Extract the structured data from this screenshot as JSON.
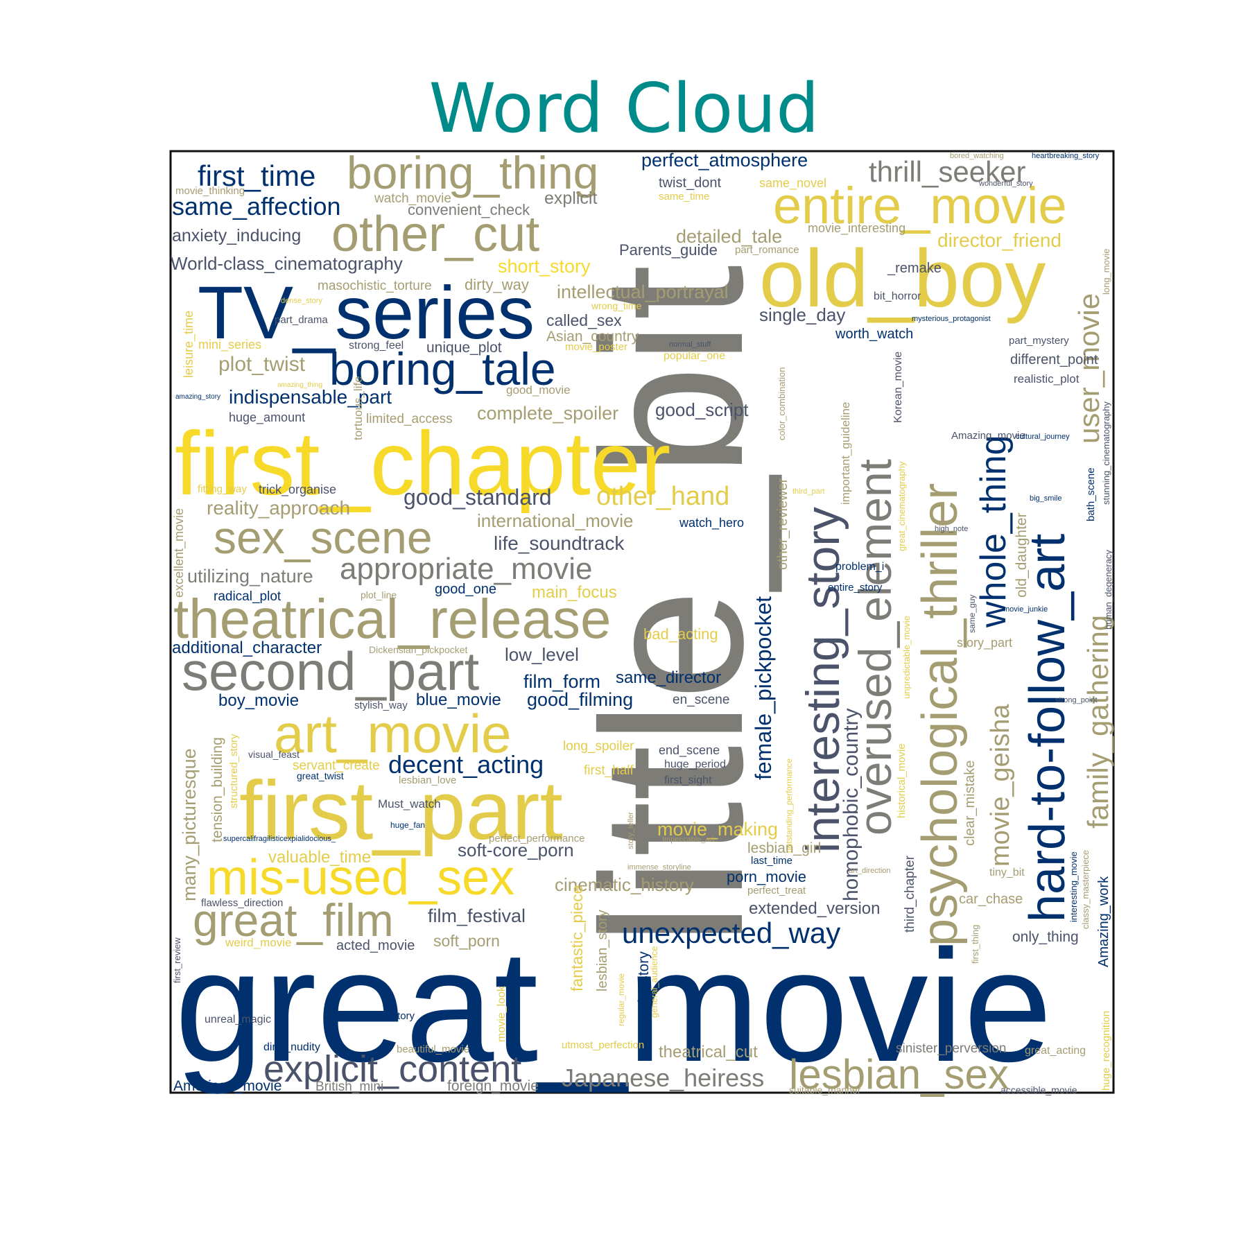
{
  "title": "Word Cloud",
  "title_color": "#008b8b",
  "colors": {
    "navy": "#00306e",
    "slate": "#4b536b",
    "gray": "#7d7c77",
    "olive": "#a59d72",
    "gold": "#e3cc4a",
    "yellow": "#f7d92a",
    "frame": "#111111"
  },
  "chart_data": {
    "type": "wordcloud",
    "words": [
      {
        "text": "great_movie",
        "color": "navy"
      },
      {
        "text": "little_bit",
        "color": "gray"
      },
      {
        "text": "first_chapter",
        "color": "yellow"
      },
      {
        "text": "first_part",
        "color": "gold"
      },
      {
        "text": "old_boy",
        "color": "gold"
      },
      {
        "text": "TV_series",
        "color": "navy"
      },
      {
        "text": "theatrical_release",
        "color": "olive"
      },
      {
        "text": "psychological_thriller",
        "color": "olive"
      },
      {
        "text": "hard-to-follow_art",
        "color": "navy"
      },
      {
        "text": "second_part",
        "color": "gray"
      },
      {
        "text": "art_movie",
        "color": "gold"
      },
      {
        "text": "mis-used_sex",
        "color": "yellow"
      },
      {
        "text": "entire_movie",
        "color": "gold"
      },
      {
        "text": "boring_thing",
        "color": "olive"
      },
      {
        "text": "other_cut",
        "color": "olive"
      },
      {
        "text": "boring_tale",
        "color": "navy"
      },
      {
        "text": "sex_scene",
        "color": "olive"
      },
      {
        "text": "great_film",
        "color": "olive"
      },
      {
        "text": "interesting_story",
        "color": "slate"
      },
      {
        "text": "overused_element",
        "color": "gray"
      },
      {
        "text": "lesbian_sex",
        "color": "olive"
      },
      {
        "text": "explicit_content",
        "color": "slate"
      },
      {
        "text": "whole_thing",
        "color": "navy"
      },
      {
        "text": "user_movie",
        "color": "olive"
      },
      {
        "text": "family_gathering",
        "color": "olive"
      },
      {
        "text": "appropriate_movie",
        "color": "gray"
      },
      {
        "text": "unexpected_way",
        "color": "navy"
      },
      {
        "text": "thrill_seeker",
        "color": "gray"
      },
      {
        "text": "first_time",
        "color": "navy"
      },
      {
        "text": "same_affection",
        "color": "navy"
      },
      {
        "text": "Japanese_heiress",
        "color": "gray"
      },
      {
        "text": "movie_geisha",
        "color": "olive"
      },
      {
        "text": "female_pickpocket",
        "color": "navy"
      },
      {
        "text": "homophobic_country",
        "color": "slate"
      },
      {
        "text": "decent_acting",
        "color": "navy"
      },
      {
        "text": "plot_twist",
        "color": "olive"
      },
      {
        "text": "indispensable_part",
        "color": "navy"
      },
      {
        "text": "good_standard",
        "color": "slate"
      },
      {
        "text": "other_hand",
        "color": "gold"
      },
      {
        "text": "reality_approach",
        "color": "olive"
      },
      {
        "text": "international_movie",
        "color": "olive"
      },
      {
        "text": "life_soundtrack",
        "color": "slate"
      },
      {
        "text": "utilizing_nature",
        "color": "gray"
      },
      {
        "text": "complete_spoiler",
        "color": "olive"
      },
      {
        "text": "good_script",
        "color": "slate"
      },
      {
        "text": "intellectual_portrayal",
        "color": "olive"
      },
      {
        "text": "single_day",
        "color": "slate"
      },
      {
        "text": "perfect_atmosphere",
        "color": "navy"
      },
      {
        "text": "director_friend",
        "color": "gold"
      },
      {
        "text": "detailed_tale",
        "color": "olive"
      },
      {
        "text": "short_story",
        "color": "yellow"
      },
      {
        "text": "Parents_guide",
        "color": "slate"
      },
      {
        "text": "anxiety_inducing",
        "color": "slate"
      },
      {
        "text": "World-class_cinematography",
        "color": "slate"
      },
      {
        "text": "explicit",
        "color": "gray"
      },
      {
        "text": "convenient_check",
        "color": "gray"
      },
      {
        "text": "masochistic_torture",
        "color": "olive"
      },
      {
        "text": "dirty_way",
        "color": "olive"
      },
      {
        "text": "called_sex",
        "color": "slate"
      },
      {
        "text": "Asian_country",
        "color": "olive"
      },
      {
        "text": "unique_plot",
        "color": "slate"
      },
      {
        "text": "additional_character",
        "color": "navy"
      },
      {
        "text": "low_level",
        "color": "slate"
      },
      {
        "text": "film_form",
        "color": "navy"
      },
      {
        "text": "same_director",
        "color": "navy"
      },
      {
        "text": "boy_movie",
        "color": "navy"
      },
      {
        "text": "blue_movie",
        "color": "navy"
      },
      {
        "text": "good_filming",
        "color": "navy"
      },
      {
        "text": "en_scene",
        "color": "slate"
      },
      {
        "text": "radical_plot",
        "color": "navy"
      },
      {
        "text": "main_focus",
        "color": "gold"
      },
      {
        "text": "bad_acting",
        "color": "gold"
      },
      {
        "text": "good_one",
        "color": "navy"
      },
      {
        "text": "soft-core_porn",
        "color": "slate"
      },
      {
        "text": "valuable_time",
        "color": "gold"
      },
      {
        "text": "film_festival",
        "color": "slate"
      },
      {
        "text": "cinematic_history",
        "color": "olive"
      },
      {
        "text": "movie_making",
        "color": "gold"
      },
      {
        "text": "extended_version",
        "color": "slate"
      },
      {
        "text": "porn_movie",
        "color": "navy"
      },
      {
        "text": "lesbian_girl",
        "color": "olive"
      },
      {
        "text": "soft_porn",
        "color": "olive"
      },
      {
        "text": "acted_movie",
        "color": "slate"
      },
      {
        "text": "theatrical_cut",
        "color": "olive"
      },
      {
        "text": "sinister_perversion",
        "color": "gray"
      },
      {
        "text": "American_movie",
        "color": "navy"
      },
      {
        "text": "British_mini",
        "color": "gray"
      },
      {
        "text": "foreign_movie",
        "color": "gray"
      },
      {
        "text": "many_picturesque",
        "color": "olive"
      },
      {
        "text": "tension_building",
        "color": "olive"
      },
      {
        "text": "Amazing_work",
        "color": "navy"
      },
      {
        "text": "clear_mistake",
        "color": "olive"
      },
      {
        "text": "third_chapter",
        "color": "slate"
      },
      {
        "text": "old_daughter",
        "color": "olive"
      },
      {
        "text": "watch_movie",
        "color": "olive"
      },
      {
        "text": "twist_dont",
        "color": "slate"
      },
      {
        "text": "same_novel",
        "color": "gold"
      },
      {
        "text": "movie_interesting",
        "color": "olive"
      },
      {
        "text": "_remake",
        "color": "slate"
      },
      {
        "text": "bit_horror",
        "color": "slate"
      },
      {
        "text": "worth_watch",
        "color": "navy"
      },
      {
        "text": "different_point",
        "color": "slate"
      },
      {
        "text": "realistic_plot",
        "color": "slate"
      },
      {
        "text": "popular_one",
        "color": "gold"
      },
      {
        "text": "good_movie",
        "color": "olive"
      },
      {
        "text": "limited_access",
        "color": "olive"
      },
      {
        "text": "huge_amount",
        "color": "slate"
      },
      {
        "text": "trick_organise",
        "color": "slate"
      },
      {
        "text": "long_spoiler",
        "color": "gold"
      },
      {
        "text": "first_half",
        "color": "gold"
      },
      {
        "text": "end_scene",
        "color": "slate"
      },
      {
        "text": "huge_period",
        "color": "slate"
      },
      {
        "text": "first_sight",
        "color": "slate"
      },
      {
        "text": "servant_create",
        "color": "gold"
      },
      {
        "text": "lesbian_love",
        "color": "olive"
      },
      {
        "text": "Must_watch",
        "color": "slate"
      },
      {
        "text": "fantastic_piece",
        "color": "gold"
      },
      {
        "text": "lesbian_story",
        "color": "olive"
      },
      {
        "text": "main_story",
        "color": "navy"
      },
      {
        "text": "whole_story",
        "color": "navy"
      },
      {
        "text": "unreal_magic",
        "color": "slate"
      },
      {
        "text": "dirty_nudity",
        "color": "navy"
      },
      {
        "text": "beautiful_movie",
        "color": "olive"
      },
      {
        "text": "utmost_perfection",
        "color": "gold"
      },
      {
        "text": "great_acting",
        "color": "olive"
      },
      {
        "text": "car_chase",
        "color": "olive"
      },
      {
        "text": "only_thing",
        "color": "slate"
      },
      {
        "text": "tiny_bit",
        "color": "olive"
      },
      {
        "text": "story_part",
        "color": "olive"
      },
      {
        "text": "flawless_direction",
        "color": "slate"
      },
      {
        "text": "weird_movie",
        "color": "gold"
      },
      {
        "text": "visual_feast",
        "color": "slate"
      },
      {
        "text": "great_twist",
        "color": "navy"
      },
      {
        "text": "watch_hero",
        "color": "navy"
      },
      {
        "text": "problem_i",
        "color": "navy"
      },
      {
        "text": "entire_story",
        "color": "navy"
      },
      {
        "text": "stylish_way",
        "color": "slate"
      },
      {
        "text": "plot_line",
        "color": "olive"
      },
      {
        "text": "Dickensian_pickpocket",
        "color": "olive"
      },
      {
        "text": "movie_thinking",
        "color": "olive"
      },
      {
        "text": "same_time",
        "color": "gold"
      },
      {
        "text": "part_romance",
        "color": "olive"
      },
      {
        "text": "dense_story",
        "color": "gold"
      },
      {
        "text": "part_drama",
        "color": "slate"
      },
      {
        "text": "wrong_time",
        "color": "gold"
      },
      {
        "text": "mini_series",
        "color": "gold"
      },
      {
        "text": "strong_feel",
        "color": "slate"
      },
      {
        "text": "movie_poster",
        "color": "gold"
      },
      {
        "text": "normal_stuff",
        "color": "slate"
      },
      {
        "text": "amazing_thing",
        "color": "gold"
      },
      {
        "text": "amazing_story",
        "color": "navy"
      },
      {
        "text": "fitting_way",
        "color": "gold"
      },
      {
        "text": "perfect_performance",
        "color": "olive"
      },
      {
        "text": "huge_fan",
        "color": "navy"
      },
      {
        "text": "supercalifragilisticexpialidocious_",
        "color": "navy"
      },
      {
        "text": "Impeccable_art",
        "color": "olive"
      },
      {
        "text": "immense_storyline",
        "color": "olive"
      },
      {
        "text": "last_time",
        "color": "navy"
      },
      {
        "text": "perfect_treat",
        "color": "olive"
      },
      {
        "text": "art_direction",
        "color": "olive"
      },
      {
        "text": "bored_watching",
        "color": "olive"
      },
      {
        "text": "heartbreaking_story",
        "color": "navy"
      },
      {
        "text": "wonderful_story",
        "color": "slate"
      },
      {
        "text": "mysterious_protagonist",
        "color": "navy"
      },
      {
        "text": "part_mystery",
        "color": "slate"
      },
      {
        "text": "Amazing_movie",
        "color": "slate"
      },
      {
        "text": "cultural_journey",
        "color": "navy"
      },
      {
        "text": "big_smile",
        "color": "navy"
      },
      {
        "text": "high_note",
        "color": "slate"
      },
      {
        "text": "third_part",
        "color": "gold"
      },
      {
        "text": "movie_junkie",
        "color": "navy"
      },
      {
        "text": "strong_point",
        "color": "slate"
      },
      {
        "text": "same_guy",
        "color": "slate"
      },
      {
        "text": "accessible_movie",
        "color": "slate"
      },
      {
        "text": "suitable_manner",
        "color": "olive"
      },
      {
        "text": "first_review",
        "color": "slate"
      },
      {
        "text": "excellent_movie",
        "color": "olive"
      },
      {
        "text": "leisure_time",
        "color": "gold"
      },
      {
        "text": "tortuous_life",
        "color": "olive"
      },
      {
        "text": "structured_story",
        "color": "gold"
      },
      {
        "text": "movie_look",
        "color": "gold"
      },
      {
        "text": "regular_movie",
        "color": "gold"
      },
      {
        "text": "general_audience",
        "color": "gold"
      },
      {
        "text": "story_teller",
        "color": "olive"
      },
      {
        "text": "outstanding_performance",
        "color": "gold"
      },
      {
        "text": "other_reviewer",
        "color": "olive"
      },
      {
        "text": "color_combination",
        "color": "olive"
      },
      {
        "text": "important_guideline",
        "color": "olive"
      },
      {
        "text": "Korean_movie",
        "color": "slate"
      },
      {
        "text": "unpredictable_movie",
        "color": "gold"
      },
      {
        "text": "historical_movie",
        "color": "gold"
      },
      {
        "text": "great_cinematography",
        "color": "gold"
      },
      {
        "text": "long_movie",
        "color": "olive"
      },
      {
        "text": "stunning_cinematography",
        "color": "slate"
      },
      {
        "text": "bath_scene",
        "color": "navy"
      },
      {
        "text": "human_degeneracy",
        "color": "slate"
      },
      {
        "text": "interesting_movie",
        "color": "navy"
      },
      {
        "text": "classy_masterpiece",
        "color": "olive"
      },
      {
        "text": "huge_recognition",
        "color": "gold"
      },
      {
        "text": "first_thing",
        "color": "olive"
      }
    ]
  }
}
